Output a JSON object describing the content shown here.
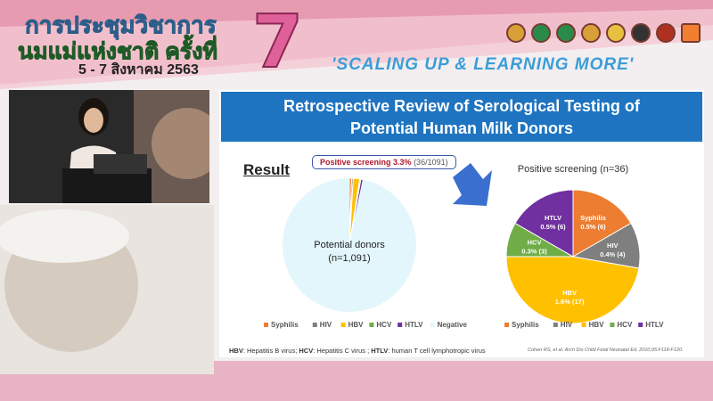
{
  "header": {
    "title_line1": "การประชุมวิชาการ",
    "title_line2": "นมแม่แห่งชาติ ครั้งที่",
    "dates": "5 - 7 สิงหาคม 2563",
    "edition": "7",
    "slogan": "'SCALING UP & LEARNING MORE'"
  },
  "slide": {
    "title_line1": "Retrospective Review of Serological Testing of",
    "title_line2": "Potential Human Milk Donors",
    "result_label": "Result",
    "callout_bold": "Positive screening 3.3%",
    "callout_rest": "(36/1091)",
    "footnote_parts": [
      {
        "b": "HBV",
        "t": ": Hepatitis B virus; "
      },
      {
        "b": "HCV",
        "t": ": Hepatitis C virus ; "
      },
      {
        "b": "HTLV",
        "t": ": human T cell lymphotropic virus"
      }
    ],
    "citation": "Cohen RS, et al. Arch Dis Child Fetal Neonatal Ed. 2010;95:F118-F120."
  },
  "colors": {
    "Syphilis": "#ed7d31",
    "HIV": "#7f7f7f",
    "HBV": "#ffc000",
    "HCV": "#70ad47",
    "HTLV": "#7030a0",
    "Negative": "#e3f6fc",
    "banner": "#1e74c0",
    "arrow": "#3a6fcf"
  },
  "chart_data": [
    {
      "type": "pie",
      "center_label_line1": "Potential donors",
      "center_label_line2": "(n=1,091)",
      "categories": [
        "Syphilis",
        "HIV",
        "HBV",
        "HCV",
        "HTLV",
        "Negative"
      ],
      "values": [
        6,
        4,
        17,
        3,
        6,
        1055
      ],
      "legend": "bottom"
    },
    {
      "type": "pie",
      "title": "Positive screening (n=36)",
      "categories": [
        "Syphilis",
        "HIV",
        "HBV",
        "HCV",
        "HTLV"
      ],
      "values": [
        6,
        4,
        17,
        3,
        6
      ],
      "data_labels": [
        "0.5% (6)",
        "0.4% (4)",
        "1.6% (17)",
        "0.3% (3)",
        "0.5% (6)"
      ],
      "legend": "bottom"
    }
  ]
}
